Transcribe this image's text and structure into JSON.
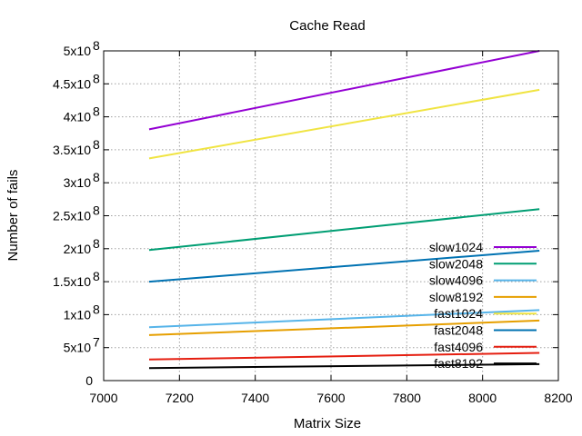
{
  "chart_data": {
    "type": "line",
    "title": "Cache Read",
    "xlabel": "Matrix Size",
    "ylabel": "Number of fails",
    "xlim": [
      7000,
      8200
    ],
    "ylim": [
      0,
      500000000
    ],
    "grid": true,
    "legend_position": "bottom-right",
    "x_ticks": [
      {
        "value": 7000,
        "label": "7000"
      },
      {
        "value": 7200,
        "label": "7200"
      },
      {
        "value": 7400,
        "label": "7400"
      },
      {
        "value": 7600,
        "label": "7600"
      },
      {
        "value": 7800,
        "label": "7800"
      },
      {
        "value": 8000,
        "label": "8000"
      },
      {
        "value": 8200,
        "label": "8200"
      }
    ],
    "y_ticks": [
      {
        "value": 0,
        "label": "0",
        "exp": ""
      },
      {
        "value": 50000000,
        "label": "5x10",
        "exp": "7"
      },
      {
        "value": 100000000,
        "label": "1x10",
        "exp": "8"
      },
      {
        "value": 150000000,
        "label": "1.5x10",
        "exp": "8"
      },
      {
        "value": 200000000,
        "label": "2x10",
        "exp": "8"
      },
      {
        "value": 250000000,
        "label": "2.5x10",
        "exp": "8"
      },
      {
        "value": 300000000,
        "label": "3x10",
        "exp": "8"
      },
      {
        "value": 350000000,
        "label": "3.5x10",
        "exp": "8"
      },
      {
        "value": 400000000,
        "label": "4x10",
        "exp": "8"
      },
      {
        "value": 450000000,
        "label": "4.5x10",
        "exp": "8"
      },
      {
        "value": 500000000,
        "label": "5x10",
        "exp": "8"
      }
    ],
    "series": [
      {
        "name": "slow1024",
        "color": "#9400d3",
        "x": [
          7120,
          8150
        ],
        "y": [
          381000000,
          500000000
        ]
      },
      {
        "name": "slow2048",
        "color": "#009e73",
        "x": [
          7120,
          8150
        ],
        "y": [
          198000000,
          260000000
        ]
      },
      {
        "name": "slow4096",
        "color": "#56b4e9",
        "x": [
          7120,
          8150
        ],
        "y": [
          81000000,
          107000000
        ]
      },
      {
        "name": "slow8192",
        "color": "#e69f00",
        "x": [
          7120,
          8150
        ],
        "y": [
          69000000,
          91000000
        ]
      },
      {
        "name": "fast1024",
        "color": "#f0e442",
        "x": [
          7120,
          8150
        ],
        "y": [
          337000000,
          441000000
        ]
      },
      {
        "name": "fast2048",
        "color": "#0072b2",
        "x": [
          7120,
          8150
        ],
        "y": [
          150000000,
          197000000
        ]
      },
      {
        "name": "fast4096",
        "color": "#e51e10",
        "x": [
          7120,
          8150
        ],
        "y": [
          32000000,
          42000000
        ]
      },
      {
        "name": "fast8192",
        "color": "#000000",
        "x": [
          7120,
          8150
        ],
        "y": [
          19000000,
          25000000
        ]
      }
    ]
  }
}
